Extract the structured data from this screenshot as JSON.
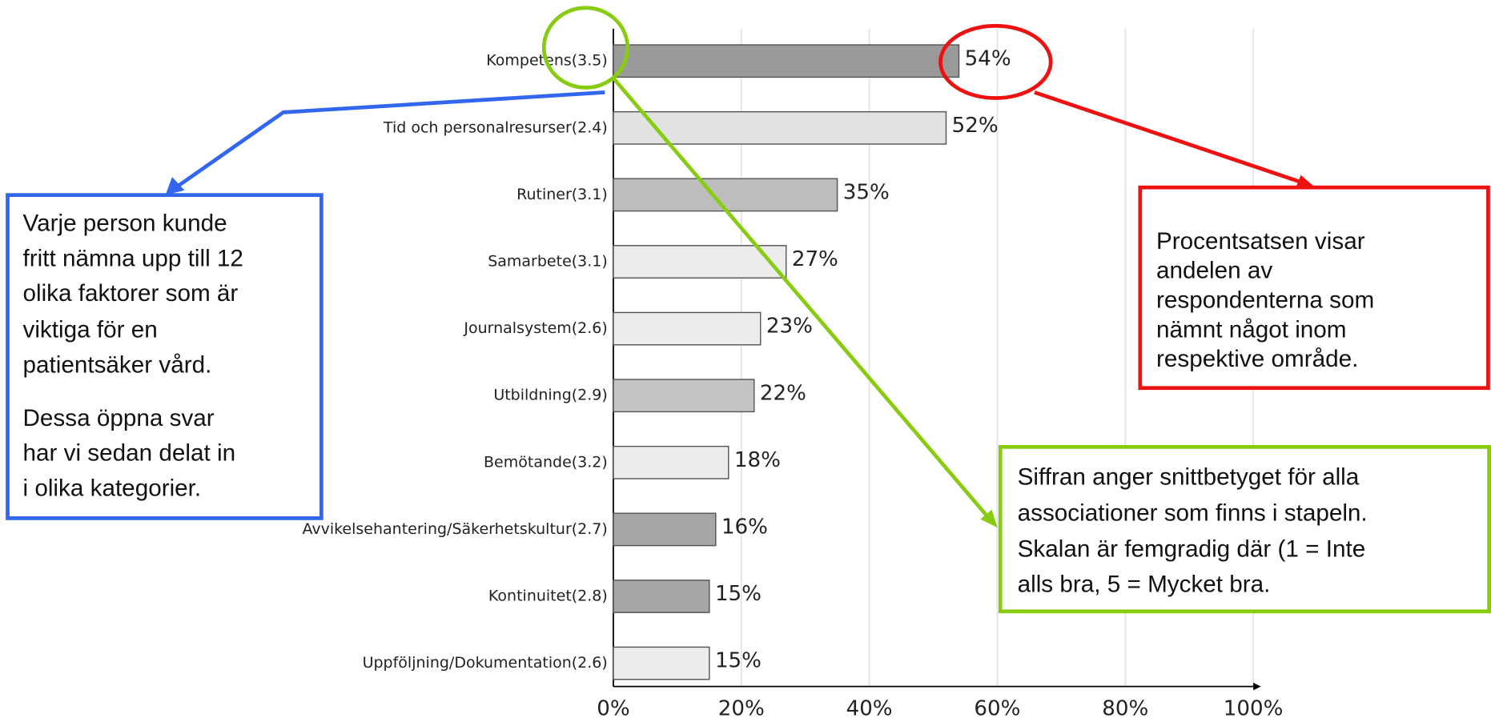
{
  "chart_data": {
    "type": "bar",
    "orientation": "horizontal",
    "categories": [
      "Kompetens(3.5)",
      "Tid och personalresurser(2.4)",
      "Rutiner(3.1)",
      "Samarbete(3.1)",
      "Journalsystem(2.6)",
      "Utbildning(2.9)",
      "Bemötande(3.2)",
      "Avvikelsehantering/Säkerhetskultur(2.7)",
      "Kontinuitet(2.8)",
      "Uppföljning/Dokumentation(2.6)"
    ],
    "values": [
      54,
      52,
      35,
      27,
      23,
      22,
      18,
      16,
      15,
      15
    ],
    "value_labels": [
      "54%",
      "52%",
      "35%",
      "27%",
      "23%",
      "22%",
      "18%",
      "16%",
      "15%",
      "15%"
    ],
    "colors": [
      "#9a9a9a",
      "#e2e2e2",
      "#bdbdbd",
      "#ececec",
      "#ececec",
      "#c4c4c4",
      "#ececec",
      "#a6a6a6",
      "#a6a6a6",
      "#ececec"
    ],
    "xlim": [
      0,
      100
    ],
    "xticks": [
      {
        "value": 0,
        "label": "0%"
      },
      {
        "value": 20,
        "label": "20%"
      },
      {
        "value": 40,
        "label": "40%"
      },
      {
        "value": 60,
        "label": "60%"
      },
      {
        "value": 80,
        "label": "80%"
      },
      {
        "value": 100,
        "label": "100%"
      }
    ],
    "grid": true,
    "annotations": [
      {
        "lines": [
          "Varje person kunde",
          "fritt nämna upp till 12",
          "olika faktorer som är",
          "viktiga för en",
          "patientsäker vård.",
          "Dessa öppna svar",
          "har vi sedan delat in",
          "i olika kategorier."
        ]
      },
      {
        "lines": [
          "Procentsatsen visar",
          "andelen av",
          "respondenterna som",
          "nämnt något inom",
          "respektive område."
        ]
      },
      {
        "lines": [
          "Siffran anger snittbetyget för alla",
          "associationer som finns i stapeln.",
          "Skalan är femgradig där (1 = Inte",
          "alls bra, 5 = Mycket bra."
        ]
      }
    ]
  }
}
